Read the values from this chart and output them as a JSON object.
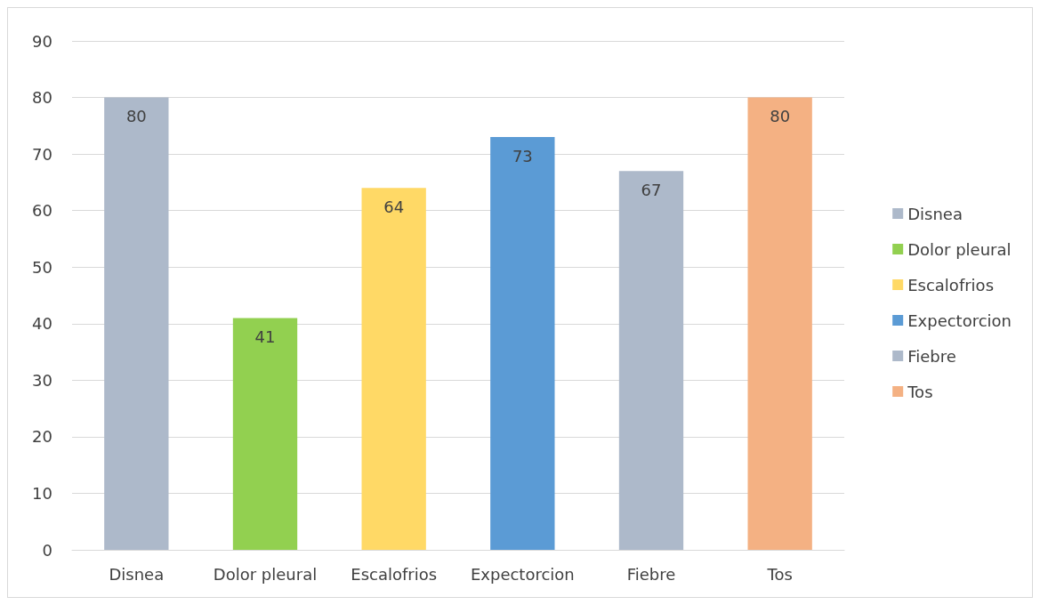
{
  "chart_data": {
    "type": "bar",
    "categories": [
      "Disnea",
      "Dolor pleural",
      "Escalofrios",
      "Expectorcion",
      "Fiebre",
      "Tos"
    ],
    "series": [
      {
        "name": "Disnea",
        "color": "#adb9ca",
        "values": [
          80,
          null,
          null,
          null,
          null,
          null
        ]
      },
      {
        "name": "Dolor pleural",
        "color": "#92d050",
        "values": [
          null,
          41,
          null,
          null,
          null,
          null
        ]
      },
      {
        "name": "Escalofrios",
        "color": "#ffd966",
        "values": [
          null,
          null,
          64,
          null,
          null,
          null
        ]
      },
      {
        "name": "Expectorcion",
        "color": "#5b9bd5",
        "values": [
          null,
          null,
          null,
          73,
          null,
          null
        ]
      },
      {
        "name": "Fiebre",
        "color": "#adb9ca",
        "values": [
          null,
          null,
          null,
          null,
          67,
          null
        ]
      },
      {
        "name": "Tos",
        "color": "#f4b183",
        "values": [
          null,
          null,
          null,
          null,
          null,
          80
        ]
      }
    ],
    "stacked": true,
    "ylim": [
      0,
      90
    ],
    "yticks": [
      0,
      10,
      20,
      30,
      40,
      50,
      60,
      70,
      80,
      90
    ],
    "grid": "y",
    "legend": "right",
    "data_labels": true
  }
}
